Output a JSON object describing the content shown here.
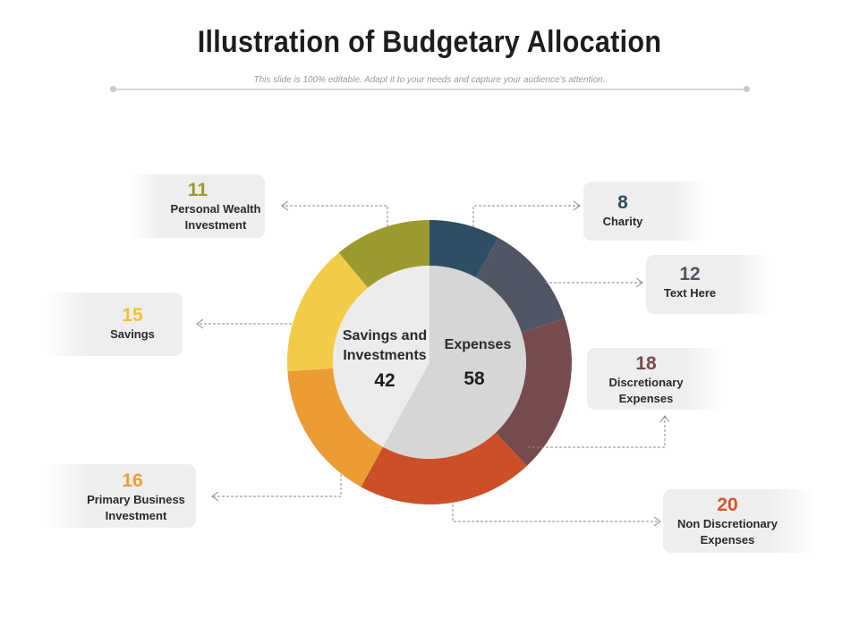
{
  "header": {
    "title": "Illustration of Budgetary Allocation",
    "subtitle": "This slide is 100% editable. Adapt it to your needs and capture your audience’s attention."
  },
  "chart_data": {
    "type": "pie",
    "variant": "donut-with-inner-split",
    "inner": [
      {
        "name": "Savings and Investments",
        "value": 42,
        "color": "#ececec"
      },
      {
        "name": "Expenses",
        "value": 58,
        "color": "#d6d6d6"
      }
    ],
    "slices": [
      {
        "key": "charity",
        "label": "Charity",
        "value": 8,
        "color": "#2e4f63"
      },
      {
        "key": "text_here",
        "label": "Text Here",
        "value": 12,
        "color": "#4f5562"
      },
      {
        "key": "discretionary",
        "label": "Discretionary Expenses",
        "value": 18,
        "color": "#774a4e"
      },
      {
        "key": "non_discretionary",
        "label": "Non Discretionary Expenses",
        "value": 20,
        "color": "#cc5027"
      },
      {
        "key": "primary_business",
        "label": "Primary Business Investment",
        "value": 16,
        "color": "#eb9c34"
      },
      {
        "key": "savings",
        "label": "Savings",
        "value": 15,
        "color": "#f2cc49"
      },
      {
        "key": "personal_wealth",
        "label": "Personal Wealth Investment",
        "value": 11,
        "color": "#9b9a2e"
      }
    ]
  },
  "cards": {
    "personal_wealth": {
      "value": "11",
      "label_line1": "Personal Wealth",
      "label_line2": "Investment"
    },
    "savings": {
      "value": "15",
      "label_line1": "Savings"
    },
    "primary_business": {
      "value": "16",
      "label_line1": "Primary Business",
      "label_line2": "Investment"
    },
    "charity": {
      "value": "8",
      "label_line1": "Charity"
    },
    "text_here": {
      "value": "12",
      "label_line1": "Text Here"
    },
    "discretionary": {
      "value": "18",
      "label_line1": "Discretionary",
      "label_line2": "Expenses"
    },
    "non_discretionary": {
      "value": "20",
      "label_line1": "Non Discretionary",
      "label_line2": "Expenses"
    }
  },
  "center": {
    "left_line1": "Savings and",
    "left_line2": "Investments",
    "left_value": "42",
    "right_label": "Expenses",
    "right_value": "58"
  }
}
